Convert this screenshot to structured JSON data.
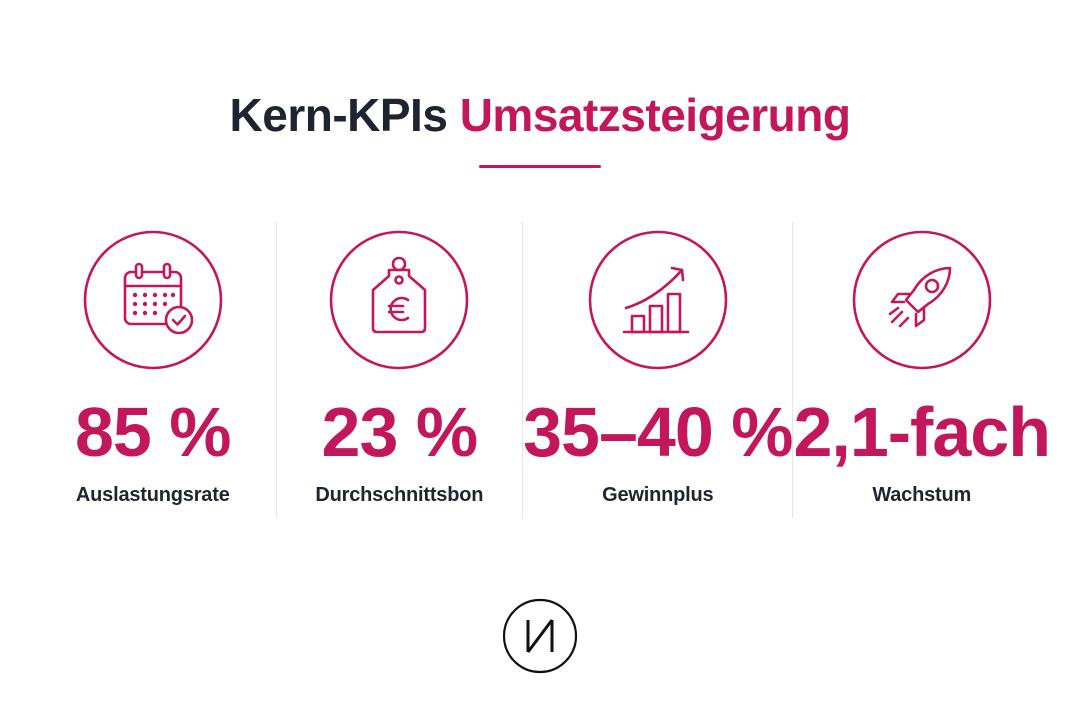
{
  "header": {
    "title_main": "Kern-KPIs",
    "title_accent": "Umsatzsteigerung"
  },
  "colors": {
    "accent": "#c2185b",
    "text": "#1f2430",
    "divider": "#e6e6e6"
  },
  "kpis": [
    {
      "icon": "calendar-check-icon",
      "value": "85 %",
      "label": "Auslastungsrate"
    },
    {
      "icon": "euro-price-tag-icon",
      "value": "23 %",
      "label": "Durchschnittsbon"
    },
    {
      "icon": "growth-chart-icon",
      "value": "35–40 %",
      "label": "Gewinnplus"
    },
    {
      "icon": "rocket-icon",
      "value": "2,1-fach",
      "label": "Wachstum"
    }
  ],
  "logo": {
    "icon": "brand-logo-icon",
    "text": "И"
  }
}
